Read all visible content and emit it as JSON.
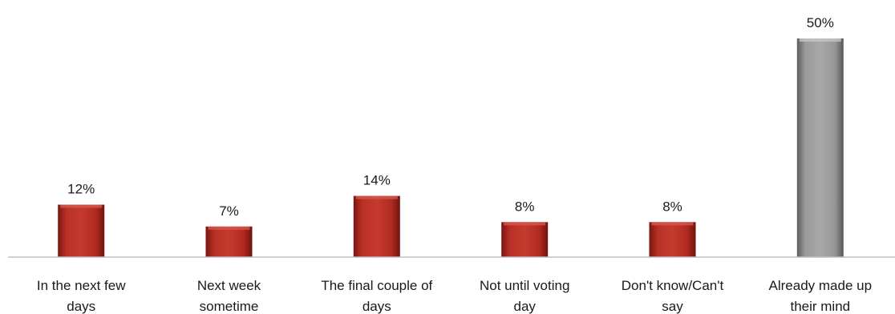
{
  "chart_data": {
    "type": "bar",
    "categories": [
      [
        "In the next few",
        "days"
      ],
      [
        "Next week",
        "sometime"
      ],
      [
        "The final couple of",
        "days"
      ],
      [
        "Not until voting",
        "day"
      ],
      [
        "Don't know/Can't",
        "say"
      ],
      [
        "Already made up",
        "their mind"
      ]
    ],
    "values": [
      12,
      7,
      14,
      8,
      8,
      50
    ],
    "value_labels": [
      "12%",
      "7%",
      "14%",
      "8%",
      "8%",
      "50%"
    ],
    "colors": [
      "#a8251c",
      "#a8251c",
      "#a8251c",
      "#a8251c",
      "#a8251c",
      "#8c8c8c"
    ],
    "ylim": [
      0,
      50
    ],
    "grid": false,
    "legend": "none"
  }
}
